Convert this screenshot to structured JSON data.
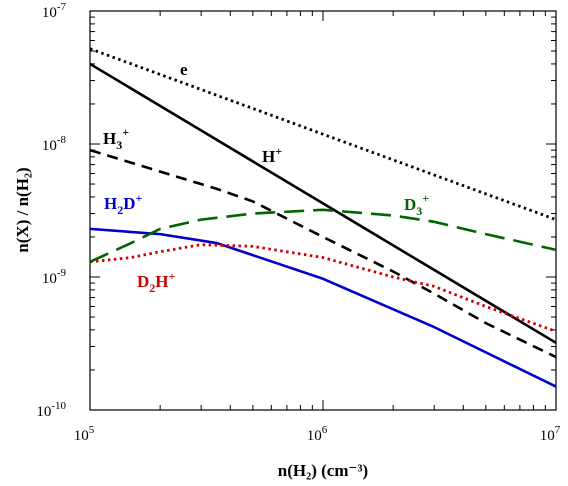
{
  "chart_data": {
    "type": "line",
    "xscale": "log",
    "yscale": "log",
    "xlim": [
      100000,
      10000000
    ],
    "ylim": [
      1e-10,
      1e-07
    ],
    "xlabel": "n(H₂)  (cm⁻³)",
    "ylabel": "n(X) / n(H₂)",
    "x_ticks": [
      {
        "base": "10",
        "exp": "5"
      },
      {
        "base": "10",
        "exp": "6"
      },
      {
        "base": "10",
        "exp": "7"
      }
    ],
    "y_ticks": [
      {
        "base": "10",
        "exp": "-10"
      },
      {
        "base": "10",
        "exp": "-9"
      },
      {
        "base": "10",
        "exp": "-8"
      },
      {
        "base": "10",
        "exp": "-7"
      }
    ],
    "grid": false,
    "legend": "none (series labelled directly on curves)",
    "series": [
      {
        "name": "e",
        "label_base": "e",
        "label_sub": "",
        "label_sup": "",
        "color": "#000000",
        "style": "dotted",
        "x": [
          100000,
          10000000
        ],
        "y": [
          5.2e-08,
          2.7e-09
        ]
      },
      {
        "name": "H+",
        "label_base": "H",
        "label_sub": "",
        "label_sup": "+",
        "color": "#000000",
        "style": "solid",
        "x": [
          100000,
          10000000
        ],
        "y": [
          4e-08,
          3.2e-10
        ]
      },
      {
        "name": "H3+",
        "label_base": "H",
        "label_sub": "3",
        "label_sup": "+",
        "color": "#000000",
        "style": "dashed",
        "x": [
          100000,
          200000,
          350000,
          500000,
          1000000,
          2000000,
          3000000,
          5000000,
          10000000
        ],
        "y": [
          9e-09,
          6.2e-09,
          4.6e-09,
          3.7e-09,
          2e-09,
          1.1e-09,
          7.5e-10,
          4.5e-10,
          2.5e-10
        ]
      },
      {
        "name": "H2D+",
        "label_base": "H",
        "label_sub": "2",
        "label_sup": "+",
        "label_mid": "D",
        "color": "#0000cc",
        "style": "solid",
        "x": [
          100000,
          200000,
          350000,
          1000000,
          3000000,
          10000000
        ],
        "y": [
          2.3e-09,
          2.1e-09,
          1.8e-09,
          9.7e-10,
          4.2e-10,
          1.5e-10
        ]
      },
      {
        "name": "D2H+",
        "label_base": "D",
        "label_sub": "2",
        "label_sup": "+",
        "label_mid": "H",
        "color": "#cc0000",
        "style": "dotted",
        "x": [
          100000,
          150000,
          200000,
          300000,
          500000,
          1000000,
          2000000,
          3000000,
          5000000,
          10000000
        ],
        "y": [
          1.3e-09,
          1.4e-09,
          1.55e-09,
          1.75e-09,
          1.7e-09,
          1.4e-09,
          1e-09,
          8.5e-10,
          6e-10,
          3.9e-10
        ]
      },
      {
        "name": "D3+",
        "label_base": "D",
        "label_sub": "3",
        "label_sup": "+",
        "color": "#006400",
        "style": "longdash",
        "x": [
          100000,
          150000,
          200000,
          300000,
          500000,
          1000000,
          2000000,
          3000000,
          5000000,
          10000000
        ],
        "y": [
          1.3e-09,
          1.8e-09,
          2.3e-09,
          2.7e-09,
          3e-09,
          3.2e-09,
          2.9e-09,
          2.6e-09,
          2.1e-09,
          1.6e-09
        ]
      }
    ]
  }
}
